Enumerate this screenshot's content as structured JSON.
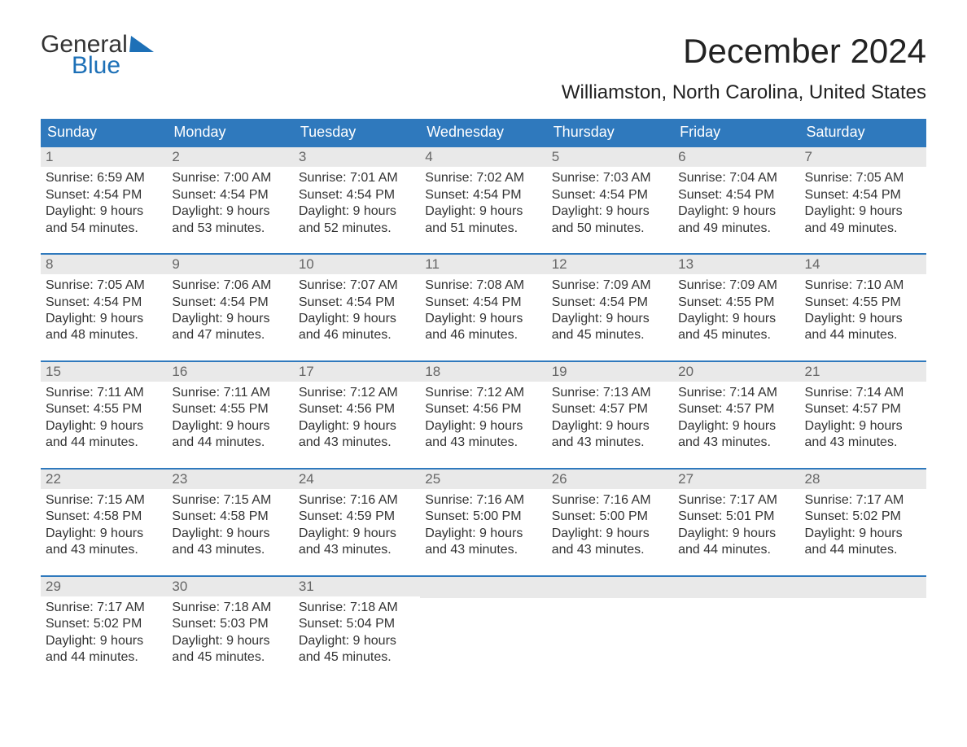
{
  "logo": {
    "word1": "General",
    "word2": "Blue"
  },
  "title": "December 2024",
  "location": "Williamston, North Carolina, United States",
  "colors": {
    "header_bg": "#2f79bd",
    "header_text": "#ffffff",
    "week_border": "#2f79bd",
    "daynum_bg": "#e9e9e9",
    "daynum_text": "#666666",
    "body_text": "#333333",
    "logo_blue": "#1d70b7"
  },
  "daysOfWeek": [
    "Sunday",
    "Monday",
    "Tuesday",
    "Wednesday",
    "Thursday",
    "Friday",
    "Saturday"
  ],
  "labels": {
    "sunrise": "Sunrise:",
    "sunset": "Sunset:",
    "daylight": "Daylight:"
  },
  "weeks": [
    [
      {
        "n": "1",
        "sunrise": "6:59 AM",
        "sunset": "4:54 PM",
        "daylight1": "9 hours",
        "daylight2": "and 54 minutes."
      },
      {
        "n": "2",
        "sunrise": "7:00 AM",
        "sunset": "4:54 PM",
        "daylight1": "9 hours",
        "daylight2": "and 53 minutes."
      },
      {
        "n": "3",
        "sunrise": "7:01 AM",
        "sunset": "4:54 PM",
        "daylight1": "9 hours",
        "daylight2": "and 52 minutes."
      },
      {
        "n": "4",
        "sunrise": "7:02 AM",
        "sunset": "4:54 PM",
        "daylight1": "9 hours",
        "daylight2": "and 51 minutes."
      },
      {
        "n": "5",
        "sunrise": "7:03 AM",
        "sunset": "4:54 PM",
        "daylight1": "9 hours",
        "daylight2": "and 50 minutes."
      },
      {
        "n": "6",
        "sunrise": "7:04 AM",
        "sunset": "4:54 PM",
        "daylight1": "9 hours",
        "daylight2": "and 49 minutes."
      },
      {
        "n": "7",
        "sunrise": "7:05 AM",
        "sunset": "4:54 PM",
        "daylight1": "9 hours",
        "daylight2": "and 49 minutes."
      }
    ],
    [
      {
        "n": "8",
        "sunrise": "7:05 AM",
        "sunset": "4:54 PM",
        "daylight1": "9 hours",
        "daylight2": "and 48 minutes."
      },
      {
        "n": "9",
        "sunrise": "7:06 AM",
        "sunset": "4:54 PM",
        "daylight1": "9 hours",
        "daylight2": "and 47 minutes."
      },
      {
        "n": "10",
        "sunrise": "7:07 AM",
        "sunset": "4:54 PM",
        "daylight1": "9 hours",
        "daylight2": "and 46 minutes."
      },
      {
        "n": "11",
        "sunrise": "7:08 AM",
        "sunset": "4:54 PM",
        "daylight1": "9 hours",
        "daylight2": "and 46 minutes."
      },
      {
        "n": "12",
        "sunrise": "7:09 AM",
        "sunset": "4:54 PM",
        "daylight1": "9 hours",
        "daylight2": "and 45 minutes."
      },
      {
        "n": "13",
        "sunrise": "7:09 AM",
        "sunset": "4:55 PM",
        "daylight1": "9 hours",
        "daylight2": "and 45 minutes."
      },
      {
        "n": "14",
        "sunrise": "7:10 AM",
        "sunset": "4:55 PM",
        "daylight1": "9 hours",
        "daylight2": "and 44 minutes."
      }
    ],
    [
      {
        "n": "15",
        "sunrise": "7:11 AM",
        "sunset": "4:55 PM",
        "daylight1": "9 hours",
        "daylight2": "and 44 minutes."
      },
      {
        "n": "16",
        "sunrise": "7:11 AM",
        "sunset": "4:55 PM",
        "daylight1": "9 hours",
        "daylight2": "and 44 minutes."
      },
      {
        "n": "17",
        "sunrise": "7:12 AM",
        "sunset": "4:56 PM",
        "daylight1": "9 hours",
        "daylight2": "and 43 minutes."
      },
      {
        "n": "18",
        "sunrise": "7:12 AM",
        "sunset": "4:56 PM",
        "daylight1": "9 hours",
        "daylight2": "and 43 minutes."
      },
      {
        "n": "19",
        "sunrise": "7:13 AM",
        "sunset": "4:57 PM",
        "daylight1": "9 hours",
        "daylight2": "and 43 minutes."
      },
      {
        "n": "20",
        "sunrise": "7:14 AM",
        "sunset": "4:57 PM",
        "daylight1": "9 hours",
        "daylight2": "and 43 minutes."
      },
      {
        "n": "21",
        "sunrise": "7:14 AM",
        "sunset": "4:57 PM",
        "daylight1": "9 hours",
        "daylight2": "and 43 minutes."
      }
    ],
    [
      {
        "n": "22",
        "sunrise": "7:15 AM",
        "sunset": "4:58 PM",
        "daylight1": "9 hours",
        "daylight2": "and 43 minutes."
      },
      {
        "n": "23",
        "sunrise": "7:15 AM",
        "sunset": "4:58 PM",
        "daylight1": "9 hours",
        "daylight2": "and 43 minutes."
      },
      {
        "n": "24",
        "sunrise": "7:16 AM",
        "sunset": "4:59 PM",
        "daylight1": "9 hours",
        "daylight2": "and 43 minutes."
      },
      {
        "n": "25",
        "sunrise": "7:16 AM",
        "sunset": "5:00 PM",
        "daylight1": "9 hours",
        "daylight2": "and 43 minutes."
      },
      {
        "n": "26",
        "sunrise": "7:16 AM",
        "sunset": "5:00 PM",
        "daylight1": "9 hours",
        "daylight2": "and 43 minutes."
      },
      {
        "n": "27",
        "sunrise": "7:17 AM",
        "sunset": "5:01 PM",
        "daylight1": "9 hours",
        "daylight2": "and 44 minutes."
      },
      {
        "n": "28",
        "sunrise": "7:17 AM",
        "sunset": "5:02 PM",
        "daylight1": "9 hours",
        "daylight2": "and 44 minutes."
      }
    ],
    [
      {
        "n": "29",
        "sunrise": "7:17 AM",
        "sunset": "5:02 PM",
        "daylight1": "9 hours",
        "daylight2": "and 44 minutes."
      },
      {
        "n": "30",
        "sunrise": "7:18 AM",
        "sunset": "5:03 PM",
        "daylight1": "9 hours",
        "daylight2": "and 45 minutes."
      },
      {
        "n": "31",
        "sunrise": "7:18 AM",
        "sunset": "5:04 PM",
        "daylight1": "9 hours",
        "daylight2": "and 45 minutes."
      },
      null,
      null,
      null,
      null
    ]
  ]
}
